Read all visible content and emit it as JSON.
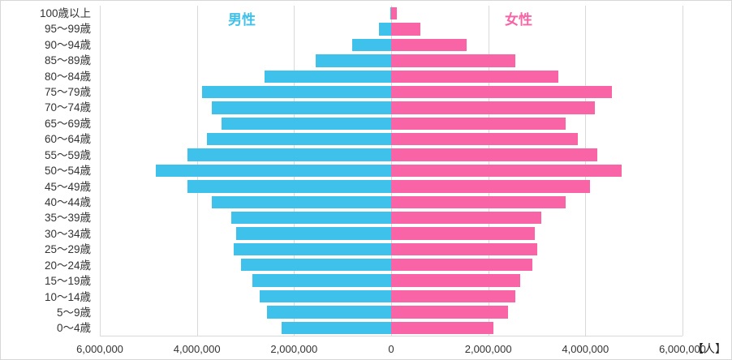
{
  "chart_data": {
    "type": "bar",
    "subtype": "population-pyramid",
    "title": "",
    "unit_label": "【人】",
    "grid": true,
    "legend_position": "inside-top",
    "x_max": 6000000,
    "x_ticks": [
      "6,000,000",
      "4,000,000",
      "2,000,000",
      "0",
      "2,000,000",
      "4,000,000",
      "6,000,000"
    ],
    "categories": [
      "100歳以上",
      "95〜99歳",
      "90〜94歳",
      "85〜89歳",
      "80〜84歳",
      "75〜79歳",
      "70〜74歳",
      "65〜69歳",
      "60〜64歳",
      "55〜59歳",
      "50〜54歳",
      "45〜49歳",
      "40〜44歳",
      "35〜39歳",
      "30〜34歳",
      "25〜29歳",
      "20〜24歳",
      "15〜19歳",
      "10〜14歳",
      "5〜9歳",
      "0〜4歳"
    ],
    "series": [
      {
        "name": "男性",
        "side": "left",
        "color": "#3ec1ea",
        "values": [
          20000,
          250000,
          800000,
          1550000,
          2600000,
          3900000,
          3700000,
          3500000,
          3800000,
          4200000,
          4850000,
          4200000,
          3700000,
          3300000,
          3200000,
          3250000,
          3100000,
          2850000,
          2700000,
          2550000,
          2250000
        ]
      },
      {
        "name": "女性",
        "side": "right",
        "color": "#f964a6",
        "values": [
          120000,
          600000,
          1550000,
          2550000,
          3450000,
          4550000,
          4200000,
          3600000,
          3850000,
          4250000,
          4750000,
          4100000,
          3600000,
          3100000,
          2950000,
          3000000,
          2900000,
          2650000,
          2550000,
          2400000,
          2100000
        ]
      }
    ],
    "colors": {
      "male": "#3ec1ea",
      "female": "#f964a6",
      "gridline": "#d9d9d9",
      "axis_text": "#333333"
    }
  }
}
